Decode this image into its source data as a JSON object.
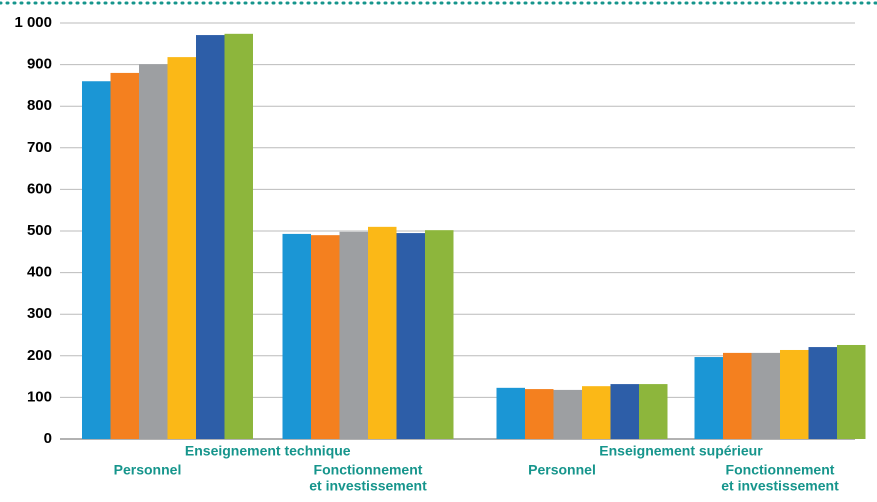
{
  "chart_data": {
    "type": "bar",
    "category_groups": [
      "Enseignement technique",
      "Enseignement supérieur"
    ],
    "categories": [
      [
        "Personnel"
      ],
      [
        "Fonctionnement",
        "et investissement"
      ],
      [
        "Personnel"
      ],
      [
        "Fonctionnement",
        "et investissement"
      ]
    ],
    "series": [
      {
        "color": "#1b96d5",
        "values": [
          860,
          493,
          123,
          197
        ]
      },
      {
        "color": "#f4801f",
        "values": [
          880,
          490,
          120,
          207
        ]
      },
      {
        "color": "#9d9fa2",
        "values": [
          901,
          498,
          118,
          207
        ]
      },
      {
        "color": "#fbb817",
        "values": [
          918,
          510,
          127,
          214
        ]
      },
      {
        "color": "#2d5ea8",
        "values": [
          971,
          495,
          132,
          221
        ]
      },
      {
        "color": "#8db63c",
        "values": [
          974,
          502,
          132,
          226
        ]
      }
    ],
    "ylim": [
      0,
      1000
    ],
    "yticks": [
      0,
      100,
      200,
      300,
      400,
      500,
      600,
      700,
      800,
      900,
      {
        "value": 1000,
        "label": "1 000"
      }
    ],
    "grid": true
  }
}
